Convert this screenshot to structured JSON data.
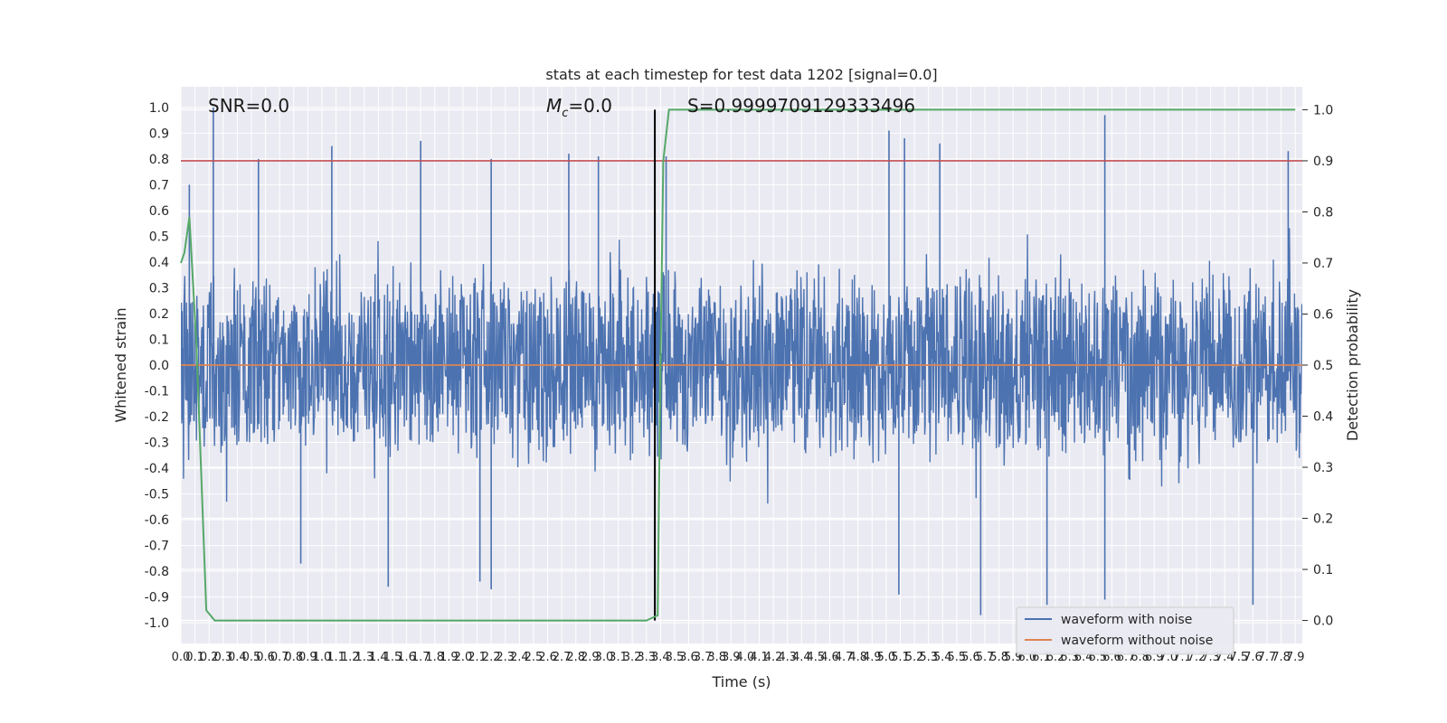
{
  "chart_data": {
    "type": "line",
    "title": "stats at each timestep for test data 1202 [signal=0.0]",
    "xlabel": "Time (s)",
    "ylabel": "Whitened strain",
    "y2label": "Detection probability",
    "xlim": [
      0.0,
      7.95
    ],
    "ylim": [
      -1.08,
      1.08
    ],
    "y2lim": [
      -0.045,
      1.045
    ],
    "x_tick_step": 0.1,
    "x_ticks_max": 7.9,
    "y_ticks": [
      -1.0,
      -0.9,
      -0.8,
      -0.7,
      -0.6,
      -0.5,
      -0.4,
      -0.3,
      -0.2,
      -0.1,
      0.0,
      0.1,
      0.2,
      0.3,
      0.4,
      0.5,
      0.6,
      0.7,
      0.8,
      0.9,
      1.0
    ],
    "y2_ticks": [
      0.0,
      0.1,
      0.2,
      0.3,
      0.4,
      0.5,
      0.6,
      0.7,
      0.8,
      0.9,
      1.0
    ],
    "grid": true,
    "legend_position": "lower-right",
    "annotations": {
      "snr": "SNR=0.0",
      "mc": "=0.0",
      "mc_symbol": "M",
      "mc_sub": "c",
      "s": "S=0.9999709129333496"
    },
    "series": [
      {
        "name": "waveform with noise",
        "color": "#4c72b0",
        "description_of_values": "dense whitened noise, mostly within ±0.4 with spikes up to 1.0 and down to -0.95",
        "spikes": [
          {
            "x": 0.23,
            "y": 1.0
          },
          {
            "x": 0.06,
            "y": 0.7
          },
          {
            "x": 0.55,
            "y": 0.8
          },
          {
            "x": 1.07,
            "y": 0.85
          },
          {
            "x": 1.7,
            "y": 0.87
          },
          {
            "x": 2.2,
            "y": 0.8
          },
          {
            "x": 2.75,
            "y": 0.82
          },
          {
            "x": 2.96,
            "y": 0.81
          },
          {
            "x": 3.44,
            "y": 0.81
          },
          {
            "x": 5.02,
            "y": 0.91
          },
          {
            "x": 5.13,
            "y": 0.88
          },
          {
            "x": 5.38,
            "y": 0.86
          },
          {
            "x": 6.55,
            "y": 0.97
          },
          {
            "x": 7.85,
            "y": 0.83
          },
          {
            "x": 0.85,
            "y": -0.77
          },
          {
            "x": 1.47,
            "y": -0.86
          },
          {
            "x": 2.12,
            "y": -0.84
          },
          {
            "x": 2.2,
            "y": -0.87
          },
          {
            "x": 5.09,
            "y": -0.89
          },
          {
            "x": 5.67,
            "y": -0.97
          },
          {
            "x": 6.14,
            "y": -0.93
          },
          {
            "x": 6.55,
            "y": -0.91
          },
          {
            "x": 7.6,
            "y": -0.93
          }
        ]
      },
      {
        "name": "waveform without noise",
        "color": "#dd8452",
        "values_note": "flat at 0.0",
        "x": [
          0.0,
          7.95
        ],
        "y": [
          0.0,
          0.0
        ]
      },
      {
        "name": "",
        "axis": "y2",
        "color": "#55a868",
        "x": [
          0.0,
          0.025,
          0.06,
          0.11,
          0.18,
          0.24,
          3.3,
          3.38,
          3.4,
          3.42,
          3.46,
          3.5,
          7.9
        ],
        "y": [
          0.7,
          0.72,
          0.79,
          0.54,
          0.02,
          0.0,
          0.0,
          0.01,
          0.5,
          0.9,
          1.0,
          1.0,
          1.0
        ]
      }
    ],
    "hlines": [
      {
        "axis": "y2",
        "y": 0.9,
        "color": "#c44e52"
      }
    ],
    "vlines": [
      {
        "x": 3.36,
        "color": "#000000"
      }
    ]
  }
}
